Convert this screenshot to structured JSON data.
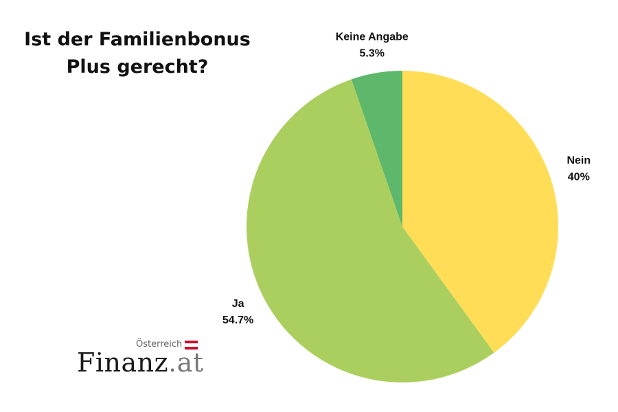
{
  "chart_data": {
    "type": "pie",
    "title_lines": [
      "Ist der Familienbonus",
      "Plus gerecht?"
    ],
    "slices": [
      {
        "label": "Nein",
        "value": 40,
        "value_label": "40%",
        "color": "#FFDD57"
      },
      {
        "label": "Ja",
        "value": 54.7,
        "value_label": "54.7%",
        "color": "#ABCF5E"
      },
      {
        "label": "Keine Angabe",
        "value": 5.3,
        "value_label": "5.3%",
        "color": "#5DB86C"
      }
    ],
    "start_angle": "12 o'clock",
    "direction": "clockwise"
  },
  "logo": {
    "region": "Österreich",
    "name": "Finanz",
    "tld": ".at",
    "flag_colors": [
      "#C8102E",
      "#FFFFFF",
      "#C8102E"
    ]
  }
}
